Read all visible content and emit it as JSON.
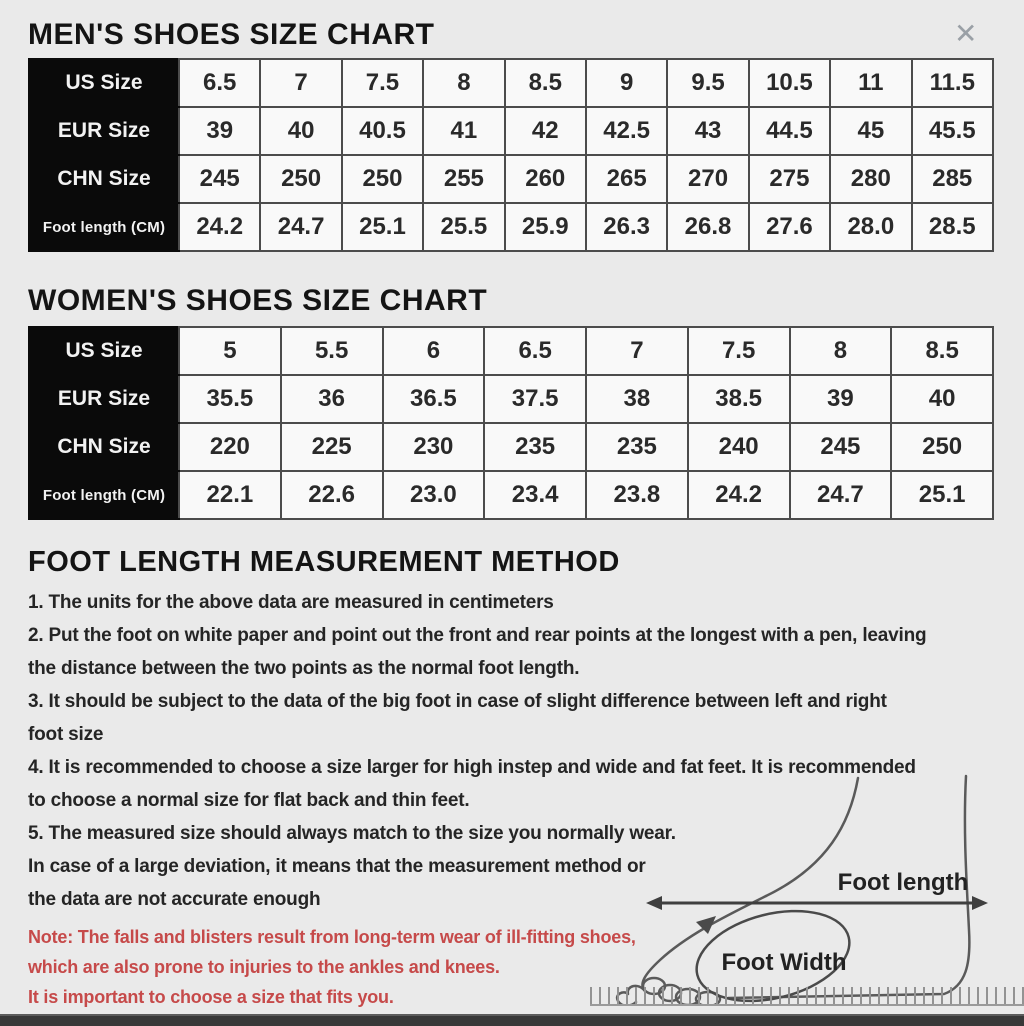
{
  "close_glyph": "✕",
  "mens_chart": {
    "title": "MEN'S SHOES SIZE CHART",
    "rows": [
      {
        "label": "US Size",
        "values": [
          "6.5",
          "7",
          "7.5",
          "8",
          "8.5",
          "9",
          "9.5",
          "10.5",
          "11",
          "11.5"
        ]
      },
      {
        "label": "EUR Size",
        "values": [
          "39",
          "40",
          "40.5",
          "41",
          "42",
          "42.5",
          "43",
          "44.5",
          "45",
          "45.5"
        ]
      },
      {
        "label": "CHN Size",
        "values": [
          "245",
          "250",
          "250",
          "255",
          "260",
          "265",
          "270",
          "275",
          "280",
          "285"
        ]
      },
      {
        "label": "Foot length (CM)",
        "values": [
          "24.2",
          "24.7",
          "25.1",
          "25.5",
          "25.9",
          "26.3",
          "26.8",
          "27.6",
          "28.0",
          "28.5"
        ]
      }
    ]
  },
  "womens_chart": {
    "title": "WOMEN'S SHOES SIZE CHART",
    "rows": [
      {
        "label": "US Size",
        "values": [
          "5",
          "5.5",
          "6",
          "6.5",
          "7",
          "7.5",
          "8",
          "8.5"
        ]
      },
      {
        "label": "EUR Size",
        "values": [
          "35.5",
          "36",
          "36.5",
          "37.5",
          "38",
          "38.5",
          "39",
          "40"
        ]
      },
      {
        "label": "CHN Size",
        "values": [
          "220",
          "225",
          "230",
          "235",
          "235",
          "240",
          "245",
          "250"
        ]
      },
      {
        "label": "Foot length (CM)",
        "values": [
          "22.1",
          "22.6",
          "23.0",
          "23.4",
          "23.8",
          "24.2",
          "24.7",
          "25.1"
        ]
      }
    ]
  },
  "method": {
    "title": "FOOT LENGTH MEASUREMENT METHOD",
    "lines": [
      "1. The units for the above data are measured in centimeters",
      "2. Put the foot on white paper and point out the front and rear points at the longest with a pen, leaving",
      "the distance between the two points as the normal foot length.",
      "3. It should be subject to the data of the big foot in case of slight difference between left and right",
      "foot size",
      "4. It is recommended to choose a size larger for high instep and wide and fat feet. It is recommended",
      "to choose a normal size for flat back and thin feet.",
      "5. The measured size should always match to the size you normally wear.",
      "In case of a large deviation, it means that the measurement method or",
      "the data are not accurate enough"
    ]
  },
  "note": {
    "lines": [
      "Note: The falls and blisters result from long-term wear of ill-fitting shoes,",
      "which are also prone to injuries to the ankles and knees.",
      "It is important to choose a size that fits you."
    ]
  },
  "diagram": {
    "foot_length_label": "Foot length",
    "foot_width_label": "Foot Width"
  },
  "colors": {
    "page_bg": "#eaeaea",
    "table_header_bg": "#0a0a0a",
    "table_border": "#4c4c4c",
    "note_red": "#c64a4a",
    "bottom_bar": "#383838"
  }
}
